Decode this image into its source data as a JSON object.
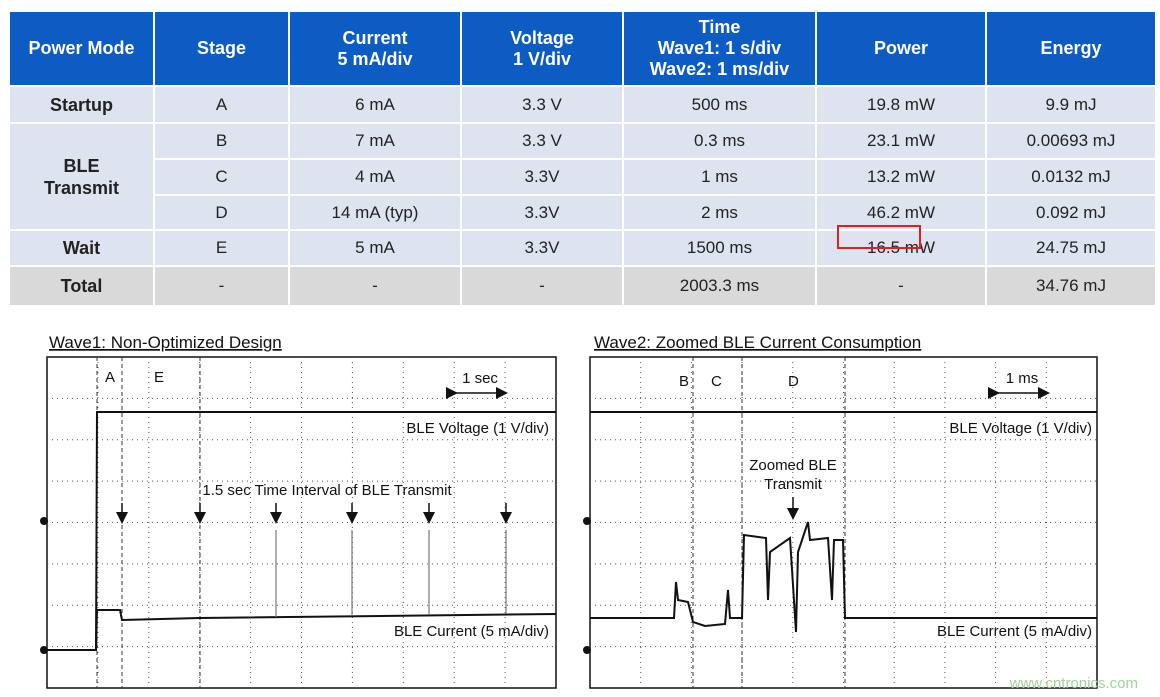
{
  "table": {
    "header": [
      [
        "Power Mode"
      ],
      [
        "Stage"
      ],
      [
        "Current",
        "5 mA/div"
      ],
      [
        "Voltage",
        "1 V/div"
      ],
      [
        "Time",
        "Wave1: 1 s/div",
        "Wave2: 1 ms/div"
      ],
      [
        "Power"
      ],
      [
        "Energy"
      ]
    ],
    "groups": [
      {
        "mode": [
          "Startup"
        ],
        "rows": [
          [
            "A",
            "6 mA",
            "3.3 V",
            "500 ms",
            "19.8 mW",
            "9.9 mJ"
          ]
        ]
      },
      {
        "mode": [
          "BLE",
          "Transmit"
        ],
        "rows": [
          [
            "B",
            "7 mA",
            "3.3 V",
            "0.3 ms",
            "23.1 mW",
            "0.00693 mJ"
          ],
          [
            "C",
            "4 mA",
            "3.3V",
            "1 ms",
            "13.2 mW",
            "0.0132 mJ"
          ],
          [
            "D",
            "14 mA (typ)",
            "3.3V",
            "2 ms",
            "46.2 mW",
            "0.092 mJ"
          ]
        ]
      },
      {
        "mode": [
          "Wait"
        ],
        "rows": [
          [
            "E",
            "5 mA",
            "3.3V",
            "1500 ms",
            "16.5 mW",
            "24.75 mJ"
          ]
        ]
      },
      {
        "mode": [
          "Total"
        ],
        "rows": [
          [
            "-",
            "-",
            "-",
            "2003.3 ms",
            "-",
            "34.76 mJ"
          ]
        ]
      }
    ]
  },
  "wave1": {
    "title": "Wave1: Non-Optimized Design",
    "stage_a": "A",
    "stage_e": "E",
    "scale": "1 sec",
    "voltage": "BLE Voltage (1 V/div)",
    "interval": "1.5 sec Time Interval of BLE Transmit",
    "current": "BLE Current (5 mA/div)"
  },
  "wave2": {
    "title": "Wave2: Zoomed BLE Current Consumption",
    "stage_b": "B",
    "stage_c": "C",
    "stage_d": "D",
    "scale": "1 ms",
    "voltage": "BLE Voltage (1 V/div)",
    "zoom_line1": "Zoomed BLE",
    "zoom_line2": "Transmit",
    "current": "BLE Current (5 mA/div)"
  },
  "watermark": "www.cntronics.com"
}
